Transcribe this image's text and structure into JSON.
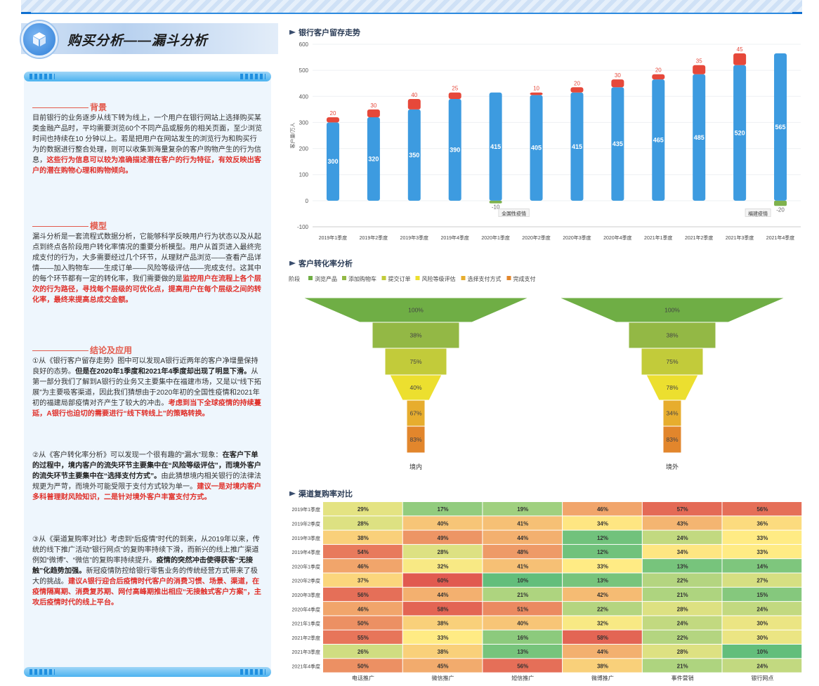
{
  "page": {
    "title": "购买分析——漏斗分析"
  },
  "text_panel": {
    "background": {
      "head": "背景",
      "paragraph": "目前银行的业务逐步从线下转为线上，一个用户在银行网站上选择购买某类金融产品时，平均需要浏览60个不同产品或服务的相关页面，至少浏览时间也持续在10 分钟以上。若是把用户在网站发生的浏览行为和购买行为的数据进行整合处理，则可以收集到海量复杂的客户购物产生的行为信息，",
      "highlight": "这些行为信息可以较为准确描述潜在客户的行为特征，有效反映出客户的潜在购物心理和购物倾向。"
    },
    "model": {
      "head": "模型",
      "paragraph": "漏斗分析是一套流程式数据分析，它能够科学反映用户行为状态以及从起点到终点各阶段用户转化率情况的重要分析模型。用户从首页进入最终完成支付的行为，大多需要经过几个环节，从理财产品浏览——查看产品详情——加入购物车——生成订单——风险等级评估——完成支付。这其中的每个环节都有一定的转化率，我们需要做的是",
      "highlight": "监控用户在流程上各个层次的行为路径，寻找每个层级的可优化点，提高用户在每个层级之间的转化率，最终来提高总成交金额。"
    },
    "conclusion": {
      "head": "结论及应用",
      "p1_a": "①从《银行客户留存走势》图中可以发现A银行近两年的客户净增量保持良好的态势。",
      "p1_b": "但是在2020年1季度和2021年4季度却出现了明显下滑。",
      "p1_c": "从第一部分我们了解到A银行的业务又主要集中在福建市场，又是以“线下拓展”为主要吸客渠道，因此我们猜想由于2020年初的全国性疫情和2021年初的福建局部疫情对齐产生了较大的冲击。",
      "p1_d": "考虑到当下全球疫情的持续蔓延，A银行也迫切的需要进行“线下转线上”的策略转换。",
      "p2_a": "②从《客户转化率分析》可以发现一个很有趣的“漏水”现象：",
      "p2_b": "在客户下单的过程中，境内客户的流失环节主要集中在“风险等级评估”，而境外客户的流失环节主要集中在“选择支付方式”。",
      "p2_c": "由此猜想境内相关银行的法律法规更为严苛，而境外可能受限于支付方式较为单一。",
      "p2_d": "建议一是对境内客户多科普理财风险知识，二是针对境外客户丰富支付方式。",
      "p3_a": "③从《渠道复购率对比》考虑到“后疫情”时代的到来，从2019年以来，传统的线下推广活动“银行网点”的复购率持续下滑，而新兴的线上推广渠道例如“微博”、“微信”的复购率持续提升。",
      "p3_b": "疫情的突然冲击使得获客“无接触”化趋势加强。",
      "p3_c": "新冠疫情防控给银行零售业务的传统经营方式带来了极大的挑战。",
      "p3_d": "建议A银行迎合后疫情时代客户的消费习惯、场景、渠道，在疫情隔离期、消费复苏期、网付高峰期推出相应“无接触式客户方案”，主攻后疫情时代的线上平台。"
    }
  },
  "chart_data": [
    {
      "type": "bar",
      "title": "银行客户留存走势",
      "ylabel": "客户量/万人",
      "ylim": [
        -100,
        600
      ],
      "yticks": [
        -100,
        0,
        100,
        200,
        300,
        400,
        500,
        600
      ],
      "categories": [
        "2019年1季度",
        "2019年2季度",
        "2019年3季度",
        "2019年4季度",
        "2020年1季度",
        "2020年2季度",
        "2020年3季度",
        "2020年4季度",
        "2021年1季度",
        "2021年2季度",
        "2021年3季度",
        "2021年4季度"
      ],
      "series": [
        {
          "name": "base",
          "color": "#3d9be0",
          "values": [
            300,
            320,
            350,
            390,
            415,
            405,
            415,
            435,
            465,
            485,
            520,
            565
          ]
        },
        {
          "name": "increase",
          "color": "#e6483a",
          "values": [
            20,
            30,
            40,
            25,
            null,
            10,
            20,
            30,
            20,
            35,
            45,
            null
          ]
        },
        {
          "name": "decrease",
          "color": "#7fb24d",
          "values": [
            null,
            null,
            null,
            null,
            -10,
            null,
            null,
            null,
            null,
            null,
            null,
            -20
          ]
        }
      ],
      "annotations": [
        {
          "category": "2020年1季度",
          "text": "全国性疫情"
        },
        {
          "category": "2021年3季度",
          "text": "福建疫情"
        }
      ]
    },
    {
      "type": "funnel",
      "title": "客户转化率分析",
      "legend_title": "阶段",
      "stages": [
        {
          "name": "浏览产品",
          "color": "#6fae45"
        },
        {
          "name": "添加购物车",
          "color": "#93b845"
        },
        {
          "name": "提交订单",
          "color": "#c2cb3a"
        },
        {
          "name": "风险等级评估",
          "color": "#ecdf2f"
        },
        {
          "name": "选择支付方式",
          "color": "#e7ad2e"
        },
        {
          "name": "完成支付",
          "color": "#e2862c"
        }
      ],
      "funnels": [
        {
          "name": "境内",
          "values": [
            "100%",
            "38%",
            "75%",
            "40%",
            "67%",
            "83%"
          ]
        },
        {
          "name": "境外",
          "values": [
            "100%",
            "38%",
            "75%",
            "78%",
            "34%",
            "83%"
          ]
        }
      ]
    },
    {
      "type": "heatmap",
      "title": "渠道复购率对比",
      "columns": [
        "电话推广",
        "微信推广",
        "短信推广",
        "微博推广",
        "事件营销",
        "银行网点"
      ],
      "rows": [
        "2019年1季度",
        "2019年2季度",
        "2019年3季度",
        "2019年4季度",
        "2020年1季度",
        "2020年2季度",
        "2020年3季度",
        "2020年4季度",
        "2021年1季度",
        "2021年2季度",
        "2021年3季度",
        "2021年4季度"
      ],
      "values": [
        [
          29,
          17,
          19,
          46,
          57,
          56
        ],
        [
          28,
          40,
          41,
          34,
          43,
          36
        ],
        [
          38,
          49,
          44,
          12,
          24,
          33
        ],
        [
          54,
          28,
          48,
          12,
          34,
          33
        ],
        [
          46,
          32,
          41,
          33,
          13,
          14
        ],
        [
          37,
          60,
          10,
          13,
          22,
          27
        ],
        [
          56,
          44,
          21,
          42,
          21,
          15
        ],
        [
          46,
          58,
          51,
          22,
          28,
          24
        ],
        [
          50,
          38,
          40,
          32,
          24,
          30
        ],
        [
          55,
          33,
          16,
          58,
          22,
          30
        ],
        [
          26,
          38,
          13,
          44,
          28,
          10
        ],
        [
          50,
          45,
          56,
          38,
          21,
          24
        ]
      ]
    }
  ]
}
